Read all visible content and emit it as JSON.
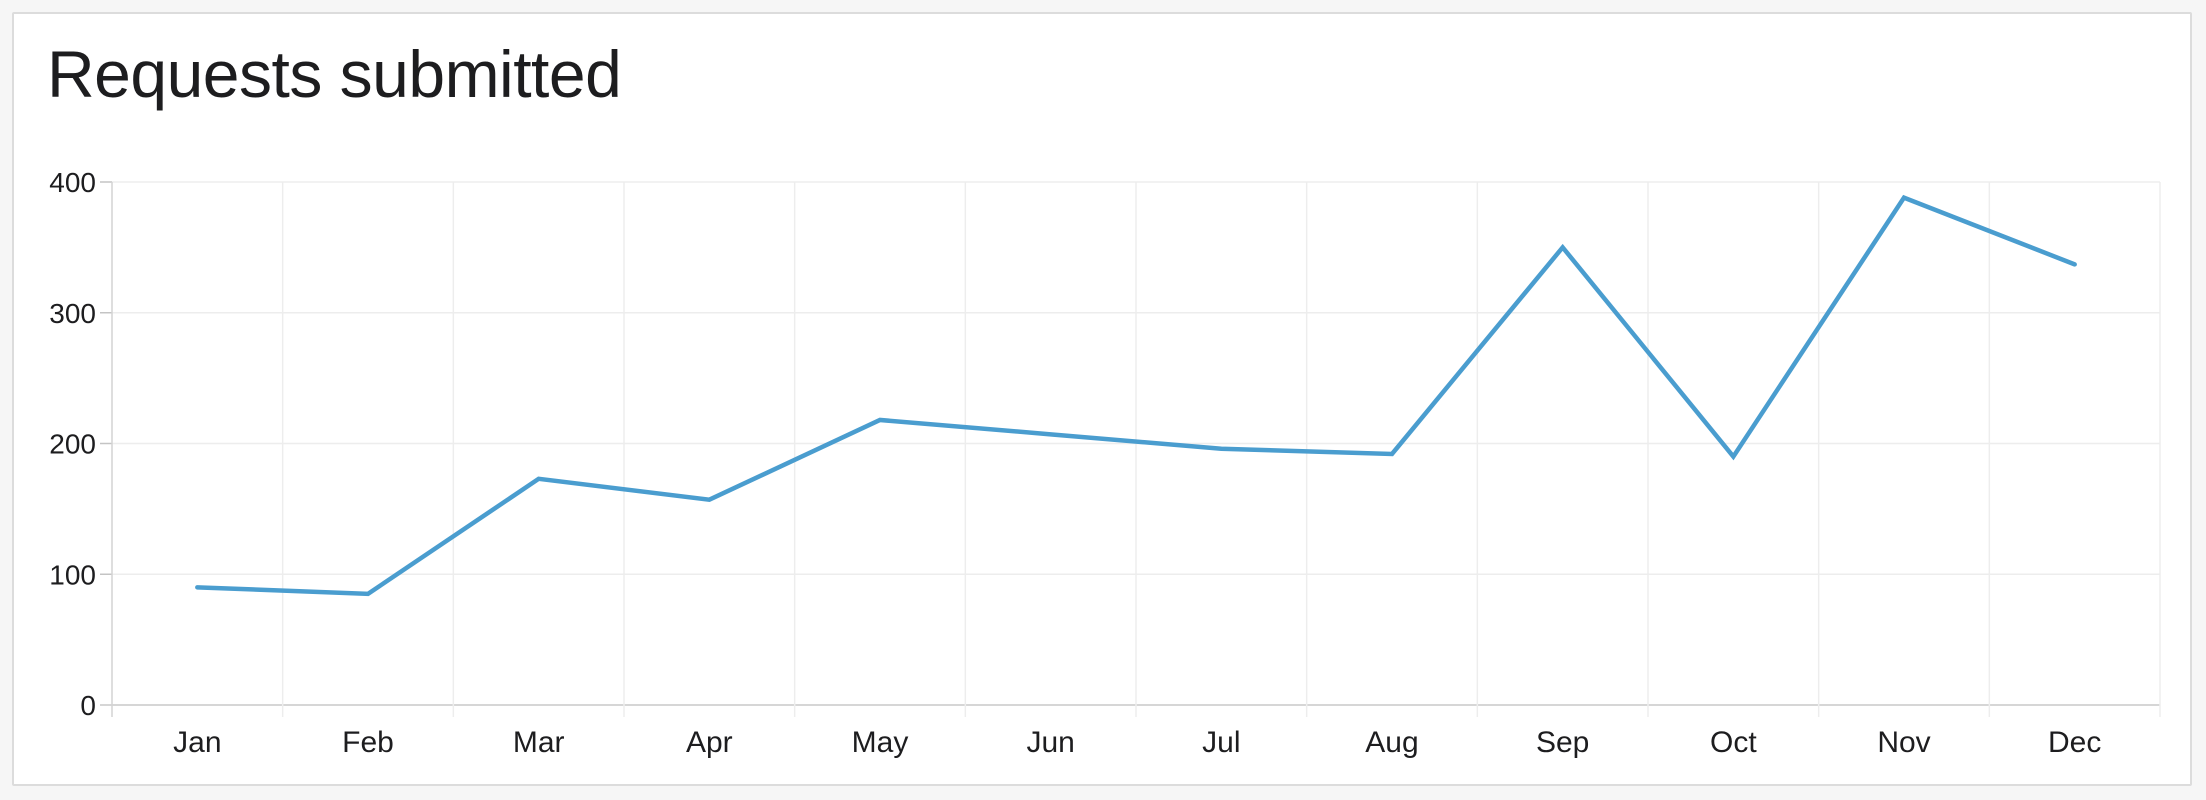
{
  "card": {
    "title": "Requests submitted"
  },
  "chart_data": {
    "type": "line",
    "title": "Requests submitted",
    "categories": [
      "Jan",
      "Feb",
      "Mar",
      "Apr",
      "May",
      "Jun",
      "Jul",
      "Aug",
      "Sep",
      "Oct",
      "Nov",
      "Dec"
    ],
    "values": [
      90,
      85,
      173,
      157,
      218,
      207,
      196,
      192,
      350,
      190,
      388,
      337
    ],
    "series": [
      {
        "name": "Requests submitted",
        "values": [
          90,
          85,
          173,
          157,
          218,
          207,
          196,
          192,
          350,
          190,
          388,
          337
        ]
      }
    ],
    "xlabel": "",
    "ylabel": "",
    "y_ticks": [
      0,
      100,
      200,
      300,
      400
    ],
    "ylim": [
      0,
      400
    ],
    "grid": true,
    "legend": false,
    "legend_position": "none",
    "line_color": "#4A9DCF"
  },
  "colors": {
    "page_background": "#f6f6f6",
    "card_background": "#ffffff",
    "card_border": "#dcdcdc",
    "gridline": "#ededed",
    "axis_line": "#d4d4d4",
    "zero_line": "#c9c9c9",
    "tick_mark": "#c4c4c4",
    "text": "#1d1d1f",
    "series_line": "#4A9DCF"
  }
}
